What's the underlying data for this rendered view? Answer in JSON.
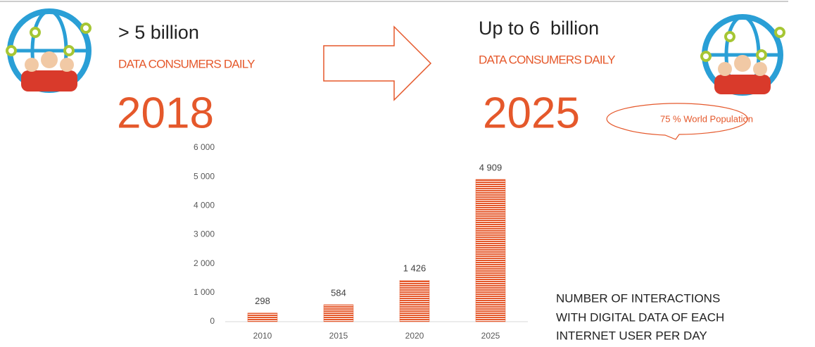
{
  "left": {
    "headline": "> 5 billion",
    "subtitle": "DATA CONSUMERS DAILY",
    "year": "2018"
  },
  "right": {
    "headline": "Up to 6  billion",
    "subtitle": "DATA CONSUMERS DAILY",
    "year": "2025",
    "callout": "75 % World Population"
  },
  "caption": [
    "NUMBER OF INTERACTIONS",
    "WITH DIGITAL DATA OF EACH",
    "INTERNET USER PER DAY"
  ],
  "chart_data": {
    "type": "bar",
    "categories": [
      "2010",
      "2015",
      "2020",
      "2025"
    ],
    "values": [
      298,
      584,
      1426,
      4909
    ],
    "value_labels": [
      "298",
      "584",
      "1 426",
      "4 909"
    ],
    "color": "#e5582b",
    "ylim": [
      0,
      6000
    ],
    "yticks": [
      0,
      {
        "value": 1000,
        "label": "1 000"
      },
      {
        "value": 2000,
        "label": "2 000"
      },
      {
        "value": 3000,
        "label": "3 000"
      },
      {
        "value": 4000,
        "label": "4 000"
      },
      {
        "value": 5000,
        "label": "5 000"
      },
      {
        "value": 6000,
        "label": "6 000"
      }
    ],
    "grid": false
  }
}
